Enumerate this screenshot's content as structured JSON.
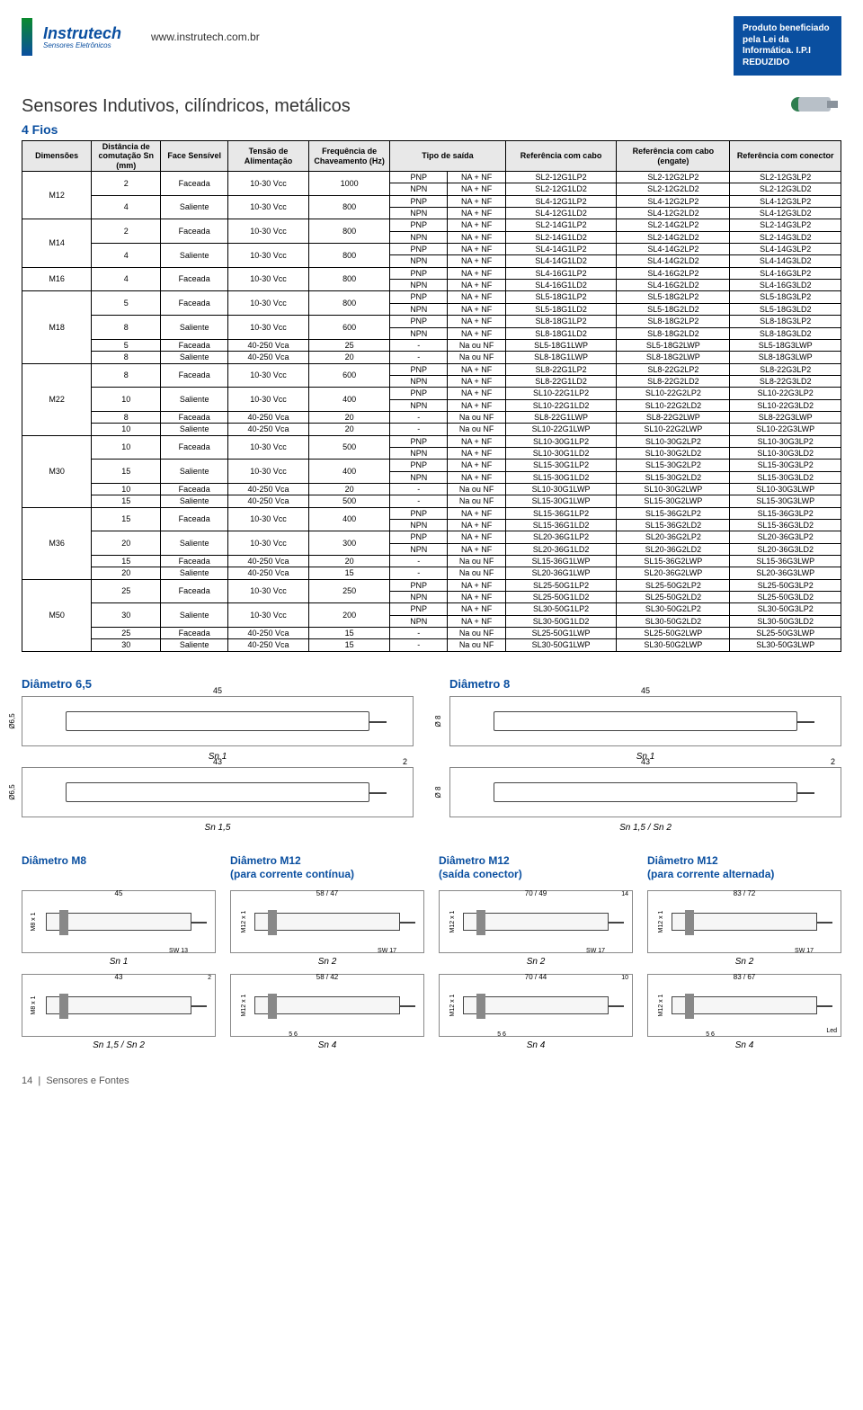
{
  "header": {
    "logo_top": "Instrutech",
    "logo_bottom": "Sensores Eletrônicos",
    "url": "www.instrutech.com.br",
    "badge": "Produto beneficiado pela Lei da Informática. I.P.I REDUZIDO"
  },
  "title": "Sensores Indutivos, cilíndricos, metálicos",
  "subtitle": "4 Fios",
  "table": {
    "bg_header": "#e8e8e8",
    "border_color": "#000000",
    "fontsize": 9,
    "columns": [
      "Dimensões",
      "Distância de comutação Sn (mm)",
      "Face Sensível",
      "Tensão de Alimentação",
      "Frequência de Chaveamento (Hz)",
      "Tipo de saída",
      "",
      "Referência com cabo",
      "Referência com cabo (engate)",
      "Referência com conector"
    ],
    "rows": [
      [
        "M12",
        "2",
        "Faceada",
        "10-30 Vcc",
        "1000",
        "PNP",
        "NA + NF",
        "SL2-12G1LP2",
        "SL2-12G2LP2",
        "SL2-12G3LP2"
      ],
      [
        "",
        "",
        "",
        "",
        "",
        "NPN",
        "NA + NF",
        "SL2-12G1LD2",
        "SL2-12G2LD2",
        "SL2-12G3LD2"
      ],
      [
        "",
        "4",
        "Saliente",
        "10-30 Vcc",
        "800",
        "PNP",
        "NA + NF",
        "SL4-12G1LP2",
        "SL4-12G2LP2",
        "SL4-12G3LP2"
      ],
      [
        "",
        "",
        "",
        "",
        "",
        "NPN",
        "NA + NF",
        "SL4-12G1LD2",
        "SL4-12G2LD2",
        "SL4-12G3LD2"
      ],
      [
        "M14",
        "2",
        "Faceada",
        "10-30 Vcc",
        "800",
        "PNP",
        "NA + NF",
        "SL2-14G1LP2",
        "SL2-14G2LP2",
        "SL2-14G3LP2"
      ],
      [
        "",
        "",
        "",
        "",
        "",
        "NPN",
        "NA + NF",
        "SL2-14G1LD2",
        "SL2-14G2LD2",
        "SL2-14G3LD2"
      ],
      [
        "",
        "4",
        "Saliente",
        "10-30 Vcc",
        "800",
        "PNP",
        "NA + NF",
        "SL4-14G1LP2",
        "SL4-14G2LP2",
        "SL4-14G3LP2"
      ],
      [
        "",
        "",
        "",
        "",
        "",
        "NPN",
        "NA + NF",
        "SL4-14G1LD2",
        "SL4-14G2LD2",
        "SL4-14G3LD2"
      ],
      [
        "M16",
        "4",
        "Faceada",
        "10-30 Vcc",
        "800",
        "PNP",
        "NA + NF",
        "SL4-16G1LP2",
        "SL4-16G2LP2",
        "SL4-16G3LP2"
      ],
      [
        "",
        "",
        "",
        "",
        "",
        "NPN",
        "NA + NF",
        "SL4-16G1LD2",
        "SL4-16G2LD2",
        "SL4-16G3LD2"
      ],
      [
        "M18",
        "5",
        "Faceada",
        "10-30 Vcc",
        "800",
        "PNP",
        "NA + NF",
        "SL5-18G1LP2",
        "SL5-18G2LP2",
        "SL5-18G3LP2"
      ],
      [
        "",
        "",
        "",
        "",
        "",
        "NPN",
        "NA + NF",
        "SL5-18G1LD2",
        "SL5-18G2LD2",
        "SL5-18G3LD2"
      ],
      [
        "",
        "8",
        "Saliente",
        "10-30 Vcc",
        "600",
        "PNP",
        "NA + NF",
        "SL8-18G1LP2",
        "SL8-18G2LP2",
        "SL8-18G3LP2"
      ],
      [
        "",
        "",
        "",
        "",
        "",
        "NPN",
        "NA + NF",
        "SL8-18G1LD2",
        "SL8-18G2LD2",
        "SL8-18G3LD2"
      ],
      [
        "",
        "5",
        "Faceada",
        "40-250 Vca",
        "25",
        "-",
        "Na ou NF",
        "SL5-18G1LWP",
        "SL5-18G2LWP",
        "SL5-18G3LWP"
      ],
      [
        "",
        "8",
        "Saliente",
        "40-250 Vca",
        "20",
        "-",
        "Na ou NF",
        "SL8-18G1LWP",
        "SL8-18G2LWP",
        "SL8-18G3LWP"
      ],
      [
        "M22",
        "8",
        "Faceada",
        "10-30 Vcc",
        "600",
        "PNP",
        "NA + NF",
        "SL8-22G1LP2",
        "SL8-22G2LP2",
        "SL8-22G3LP2"
      ],
      [
        "",
        "",
        "",
        "",
        "",
        "NPN",
        "NA + NF",
        "SL8-22G1LD2",
        "SL8-22G2LD2",
        "SL8-22G3LD2"
      ],
      [
        "",
        "10",
        "Saliente",
        "10-30 Vcc",
        "400",
        "PNP",
        "NA + NF",
        "SL10-22G1LP2",
        "SL10-22G2LP2",
        "SL10-22G3LP2"
      ],
      [
        "",
        "",
        "",
        "",
        "",
        "NPN",
        "NA + NF",
        "SL10-22G1LD2",
        "SL10-22G2LD2",
        "SL10-22G3LD2"
      ],
      [
        "",
        "8",
        "Faceada",
        "40-250 Vca",
        "20",
        "-",
        "Na ou NF",
        "SL8-22G1LWP",
        "SL8-22G2LWP",
        "SL8-22G3LWP"
      ],
      [
        "",
        "10",
        "Saliente",
        "40-250 Vca",
        "20",
        "-",
        "Na ou NF",
        "SL10-22G1LWP",
        "SL10-22G2LWP",
        "SL10-22G3LWP"
      ],
      [
        "M30",
        "10",
        "Faceada",
        "10-30 Vcc",
        "500",
        "PNP",
        "NA + NF",
        "SL10-30G1LP2",
        "SL10-30G2LP2",
        "SL10-30G3LP2"
      ],
      [
        "",
        "",
        "",
        "",
        "",
        "NPN",
        "NA + NF",
        "SL10-30G1LD2",
        "SL10-30G2LD2",
        "SL10-30G3LD2"
      ],
      [
        "",
        "15",
        "Saliente",
        "10-30 Vcc",
        "400",
        "PNP",
        "NA + NF",
        "SL15-30G1LP2",
        "SL15-30G2LP2",
        "SL15-30G3LP2"
      ],
      [
        "",
        "",
        "",
        "",
        "",
        "NPN",
        "NA + NF",
        "SL15-30G1LD2",
        "SL15-30G2LD2",
        "SL15-30G3LD2"
      ],
      [
        "",
        "10",
        "Faceada",
        "40-250 Vca",
        "20",
        "-",
        "Na ou NF",
        "SL10-30G1LWP",
        "SL10-30G2LWP",
        "SL10-30G3LWP"
      ],
      [
        "",
        "15",
        "Saliente",
        "40-250 Vca",
        "500",
        "-",
        "Na ou NF",
        "SL15-30G1LWP",
        "SL15-30G2LWP",
        "SL15-30G3LWP"
      ],
      [
        "M36",
        "15",
        "Faceada",
        "10-30 Vcc",
        "400",
        "PNP",
        "NA + NF",
        "SL15-36G1LP2",
        "SL15-36G2LP2",
        "SL15-36G3LP2"
      ],
      [
        "",
        "",
        "",
        "",
        "",
        "NPN",
        "NA + NF",
        "SL15-36G1LD2",
        "SL15-36G2LD2",
        "SL15-36G3LD2"
      ],
      [
        "",
        "20",
        "Saliente",
        "10-30 Vcc",
        "300",
        "PNP",
        "NA + NF",
        "SL20-36G1LP2",
        "SL20-36G2LP2",
        "SL20-36G3LP2"
      ],
      [
        "",
        "",
        "",
        "",
        "",
        "NPN",
        "NA + NF",
        "SL20-36G1LD2",
        "SL20-36G2LD2",
        "SL20-36G3LD2"
      ],
      [
        "",
        "15",
        "Faceada",
        "40-250 Vca",
        "20",
        "-",
        "Na ou NF",
        "SL15-36G1LWP",
        "SL15-36G2LWP",
        "SL15-36G3LWP"
      ],
      [
        "",
        "20",
        "Saliente",
        "40-250 Vca",
        "15",
        "-",
        "Na ou NF",
        "SL20-36G1LWP",
        "SL20-36G2LWP",
        "SL20-36G3LWP"
      ],
      [
        "M50",
        "25",
        "Faceada",
        "10-30 Vcc",
        "250",
        "PNP",
        "NA + NF",
        "SL25-50G1LP2",
        "SL25-50G2LP2",
        "SL25-50G3LP2"
      ],
      [
        "",
        "",
        "",
        "",
        "",
        "NPN",
        "NA + NF",
        "SL25-50G1LD2",
        "SL25-50G2LD2",
        "SL25-50G3LD2"
      ],
      [
        "",
        "30",
        "Saliente",
        "10-30 Vcc",
        "200",
        "PNP",
        "NA + NF",
        "SL30-50G1LP2",
        "SL30-50G2LP2",
        "SL30-50G3LP2"
      ],
      [
        "",
        "",
        "",
        "",
        "",
        "NPN",
        "NA + NF",
        "SL30-50G1LD2",
        "SL30-50G2LD2",
        "SL30-50G3LD2"
      ],
      [
        "",
        "25",
        "Faceada",
        "40-250 Vca",
        "15",
        "-",
        "Na ou NF",
        "SL25-50G1LWP",
        "SL25-50G2LWP",
        "SL25-50G3LWP"
      ],
      [
        "",
        "30",
        "Saliente",
        "40-250 Vca",
        "15",
        "-",
        "Na ou NF",
        "SL30-50G1LWP",
        "SL30-50G2LWP",
        "SL30-50G3LWP"
      ]
    ],
    "spans": {
      "col0": [
        [
          0,
          4
        ],
        [
          4,
          4
        ],
        [
          8,
          2
        ],
        [
          10,
          6
        ],
        [
          16,
          6
        ],
        [
          22,
          6
        ],
        [
          28,
          6
        ],
        [
          34,
          6
        ]
      ],
      "group": [
        [
          0,
          2
        ],
        [
          2,
          2
        ],
        [
          4,
          2
        ],
        [
          6,
          2
        ],
        [
          8,
          2
        ],
        [
          10,
          2
        ],
        [
          12,
          2
        ],
        [
          14,
          1
        ],
        [
          15,
          1
        ],
        [
          16,
          2
        ],
        [
          18,
          2
        ],
        [
          20,
          1
        ],
        [
          21,
          1
        ],
        [
          22,
          2
        ],
        [
          24,
          2
        ],
        [
          26,
          1
        ],
        [
          27,
          1
        ],
        [
          28,
          2
        ],
        [
          30,
          2
        ],
        [
          32,
          1
        ],
        [
          33,
          1
        ],
        [
          34,
          2
        ],
        [
          36,
          2
        ],
        [
          38,
          1
        ],
        [
          39,
          1
        ]
      ]
    }
  },
  "diagrams": {
    "d65_title": "Diâmetro 6,5",
    "d8_title": "Diâmetro 8",
    "d65": [
      {
        "len": "45",
        "diam": "Ø6,5",
        "cap": "Sn 1"
      },
      {
        "len": "43",
        "diam": "Ø6,5",
        "cap": "Sn 1,5",
        "tail": "2"
      }
    ],
    "d8": [
      {
        "len": "45",
        "diam": "Ø 8",
        "cap": "Sn 1"
      },
      {
        "len": "43",
        "diam": "Ø 8",
        "cap": "Sn 1,5 / Sn 2",
        "tail": "2"
      }
    ],
    "bottom": [
      {
        "title": "Diâmetro M8",
        "sub": "",
        "items": [
          {
            "len": "45",
            "axis": "M8 x 1",
            "sw": "SW 13",
            "cap": "Sn 1"
          },
          {
            "len": "43",
            "axis": "M8 x 1",
            "sw": "",
            "cap": "Sn 1,5 / Sn 2",
            "tail": "2"
          }
        ]
      },
      {
        "title": "Diâmetro M12",
        "sub": "(para corrente contínua)",
        "items": [
          {
            "len": "58 / 47",
            "axis": "M12 x 1",
            "sw": "SW 17",
            "cap": "Sn 2"
          },
          {
            "len": "58 / 42",
            "axis": "M12 x 1",
            "sw": "",
            "cap": "Sn 4",
            "bottom": "5   6"
          }
        ]
      },
      {
        "title": "Diâmetro M12",
        "sub": "(saída conector)",
        "items": [
          {
            "len": "70 / 49",
            "axis": "M12 x 1",
            "sw": "SW 17",
            "cap": "Sn 2",
            "tail": "14"
          },
          {
            "len": "70 / 44",
            "axis": "M12 x 1",
            "sw": "",
            "cap": "Sn 4",
            "tail": "10",
            "bottom": "5   6"
          }
        ]
      },
      {
        "title": "Diâmetro M12",
        "sub": "(para corrente alternada)",
        "items": [
          {
            "len": "83 / 72",
            "axis": "M12 x 1",
            "sw": "SW 17",
            "cap": "Sn 2"
          },
          {
            "len": "83 / 67",
            "axis": "M12 x 1",
            "sw": "",
            "cap": "Sn 4",
            "bottom": "5   6",
            "note": "Led"
          }
        ]
      }
    ]
  },
  "footer": {
    "page": "14",
    "section": "Sensores e Fontes"
  },
  "colors": {
    "brand": "#0a4fa0",
    "accent": "#0a8a2e",
    "header_bg": "#e8e8e8"
  }
}
